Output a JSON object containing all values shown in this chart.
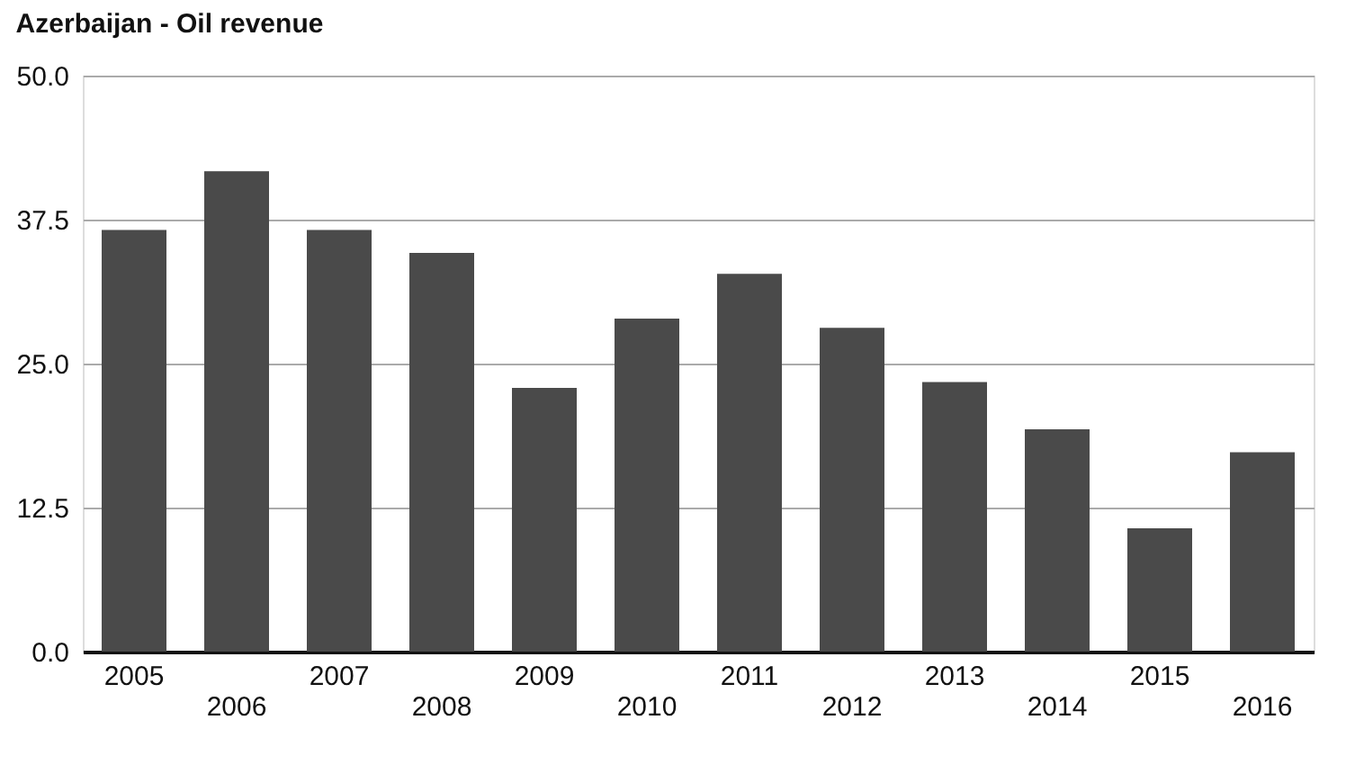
{
  "chart_data": {
    "type": "bar",
    "title": "Azerbaijan - Oil revenue",
    "categories": [
      "2005",
      "2006",
      "2007",
      "2008",
      "2009",
      "2010",
      "2011",
      "2012",
      "2013",
      "2014",
      "2015",
      "2016"
    ],
    "values": [
      36.6,
      41.7,
      36.6,
      34.6,
      22.9,
      28.9,
      32.8,
      28.1,
      23.4,
      19.3,
      10.7,
      17.3
    ],
    "color": "#4a4a4a",
    "ylim": [
      0,
      50
    ],
    "yticks": [
      {
        "value": 0,
        "label": "0.0"
      },
      {
        "value": 12.5,
        "label": "12.5"
      },
      {
        "value": 25,
        "label": "25.0"
      },
      {
        "value": 37.5,
        "label": "37.5"
      },
      {
        "value": 50,
        "label": "50.0"
      }
    ],
    "grid": "y"
  }
}
